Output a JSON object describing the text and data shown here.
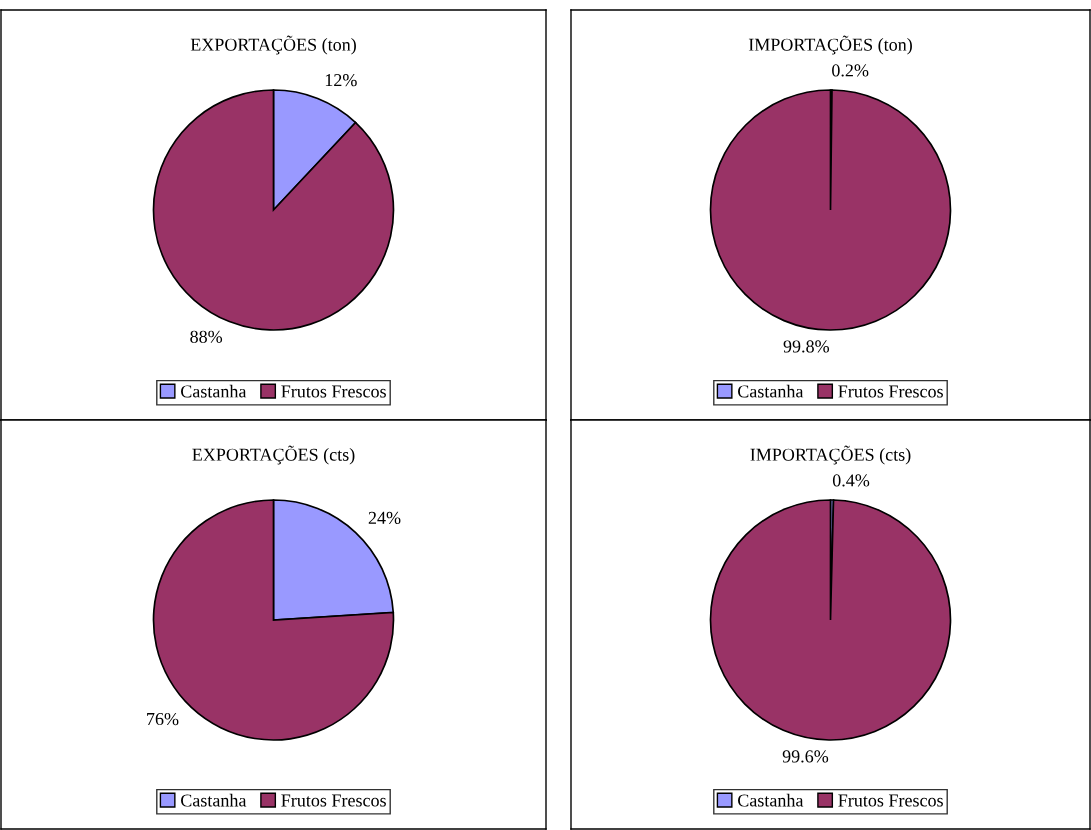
{
  "chart_data": [
    {
      "type": "pie",
      "title": "EXPORTAÇÕES (ton)",
      "categories": [
        "Castanha",
        "Frutos Frescos"
      ],
      "values": [
        12,
        88
      ],
      "colors": [
        "#9999ff",
        "#993366"
      ],
      "value_labels": [
        "12%",
        "88%"
      ],
      "legend": "bottom"
    },
    {
      "type": "pie",
      "title": "IMPORTAÇÕES (ton)",
      "categories": [
        "Castanha",
        "Frutos Frescos"
      ],
      "values": [
        0.2,
        99.8
      ],
      "colors": [
        "#9999ff",
        "#993366"
      ],
      "value_labels": [
        "0.2%",
        "99.8%"
      ],
      "legend": "bottom"
    },
    {
      "type": "pie",
      "title": "EXPORTAÇÕES (cts)",
      "categories": [
        "Castanha",
        "Frutos Frescos"
      ],
      "values": [
        24,
        76
      ],
      "colors": [
        "#9999ff",
        "#993366"
      ],
      "value_labels": [
        "24%",
        "76%"
      ],
      "legend": "bottom"
    },
    {
      "type": "pie",
      "title": "IMPORTAÇÕES (cts)",
      "categories": [
        "Castanha",
        "Frutos Frescos"
      ],
      "values": [
        0.4,
        99.6
      ],
      "colors": [
        "#9999ff",
        "#993366"
      ],
      "value_labels": [
        "0.4%",
        "99.6%"
      ],
      "legend": "bottom"
    }
  ]
}
